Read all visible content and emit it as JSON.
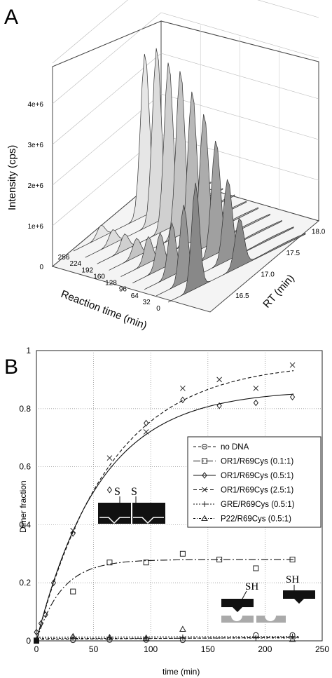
{
  "chart_data": [
    {
      "panel": "A",
      "type": "area",
      "ylabel": "Intensity (cps)",
      "xlabel": "Reaction time (min)",
      "zlabel": "RT (min)",
      "intensity_ticks": [
        "0",
        "1e+6",
        "2e+6",
        "3e+6",
        "4e+6"
      ],
      "reaction_time_ticks": [
        "256",
        "224",
        "192",
        "160",
        "128",
        "96",
        "64",
        "32",
        "0"
      ],
      "rt_ticks": [
        "16.5",
        "17.0",
        "17.5",
        "18.0"
      ],
      "series": [
        {
          "reaction_time": 256,
          "peak_large": 4000000,
          "peak_small": 300000
        },
        {
          "reaction_time": 224,
          "peak_large": 4300000,
          "peak_small": 350000
        },
        {
          "reaction_time": 192,
          "peak_large": 4100000,
          "peak_small": 400000
        },
        {
          "reaction_time": 160,
          "peak_large": 4050000,
          "peak_small": 450000
        },
        {
          "reaction_time": 128,
          "peak_large": 3700000,
          "peak_small": 650000
        },
        {
          "reaction_time": 96,
          "peak_large": 3300000,
          "peak_small": 900000
        },
        {
          "reaction_time": 64,
          "peak_large": 2800000,
          "peak_small": 1300000
        },
        {
          "reaction_time": 32,
          "peak_large": 2000000,
          "peak_small": 1900000
        },
        {
          "reaction_time": 0,
          "peak_large": 1200000,
          "peak_small": 2600000
        }
      ]
    },
    {
      "panel": "B",
      "type": "scatter",
      "xlabel": "time (min)",
      "ylabel": "Dimer fraction",
      "xlim": [
        0,
        250
      ],
      "ylim": [
        0,
        1
      ],
      "x_ticks": [
        0,
        50,
        100,
        150,
        200,
        250
      ],
      "y_ticks": [
        0,
        0.2,
        0.4,
        0.6,
        0.8,
        1
      ],
      "grid": true,
      "legend_position": "right",
      "series": [
        {
          "name": "no DNA",
          "marker": "circle",
          "dash": "4 3",
          "points": [
            [
              0,
              0
            ],
            [
              32,
              0.002
            ],
            [
              64,
              0.003
            ],
            [
              96,
              0.003
            ],
            [
              128,
              0.002
            ],
            [
              192,
              0.02
            ],
            [
              224,
              0.02
            ]
          ],
          "fit": [
            [
              0,
              0.005
            ],
            [
              230,
              0.012
            ]
          ]
        },
        {
          "name": "OR1/R69Cys (0.1:1)",
          "marker": "square",
          "dash": "10 3 2 3",
          "points": [
            [
              0,
              0
            ],
            [
              32,
              0.17
            ],
            [
              64,
              0.27
            ],
            [
              96,
              0.27
            ],
            [
              128,
              0.3
            ],
            [
              160,
              0.28
            ],
            [
              192,
              0.25
            ],
            [
              224,
              0.28
            ]
          ],
          "fit_rate": 0.045,
          "fit_max": 0.28
        },
        {
          "name": "OR1/R69Cys (0.5:1)",
          "marker": "diamond",
          "dash": "",
          "points": [
            [
              0,
              0.03
            ],
            [
              4,
              0.06
            ],
            [
              8,
              0.09
            ],
            [
              15,
              0.2
            ],
            [
              32,
              0.37
            ],
            [
              64,
              0.52
            ],
            [
              96,
              0.75
            ],
            [
              128,
              0.83
            ],
            [
              160,
              0.81
            ],
            [
              192,
              0.82
            ],
            [
              224,
              0.84
            ]
          ],
          "fit_rate": 0.018,
          "fit_max": 0.865
        },
        {
          "name": "OR1/R69Cys (2.5:1)",
          "marker": "x",
          "dash": "5 3",
          "points": [
            [
              32,
              0.38
            ],
            [
              64,
              0.63
            ],
            [
              96,
              0.72
            ],
            [
              128,
              0.87
            ],
            [
              160,
              0.9
            ],
            [
              192,
              0.87
            ],
            [
              224,
              0.95
            ]
          ],
          "fit_rate": 0.0155,
          "fit_max": 0.96
        },
        {
          "name": "GRE/R69Cys (0.5:1)",
          "marker": "plus",
          "dash": "2 2",
          "points": [
            [
              0,
              0.01
            ],
            [
              32,
              0.012
            ],
            [
              64,
              0.012
            ],
            [
              96,
              0.01
            ],
            [
              128,
              0.012
            ],
            [
              192,
              0.01
            ],
            [
              224,
              0.015
            ]
          ],
          "fit": [
            [
              0,
              0.012
            ],
            [
              230,
              0.015
            ]
          ]
        },
        {
          "name": "P22/R69Cys (0.5:1)",
          "marker": "triangle",
          "dash": "3 2 1 2",
          "points": [
            [
              32,
              0.015
            ],
            [
              64,
              0.012
            ],
            [
              96,
              0.01
            ],
            [
              128,
              0.04
            ],
            [
              224,
              0.005
            ]
          ],
          "fit": [
            [
              0,
              0.008
            ],
            [
              230,
              0.01
            ]
          ]
        }
      ],
      "inset_labels": [
        "S",
        "S",
        "SH",
        "SH"
      ]
    }
  ],
  "panel_labels": {
    "a": "A",
    "b": "B"
  }
}
